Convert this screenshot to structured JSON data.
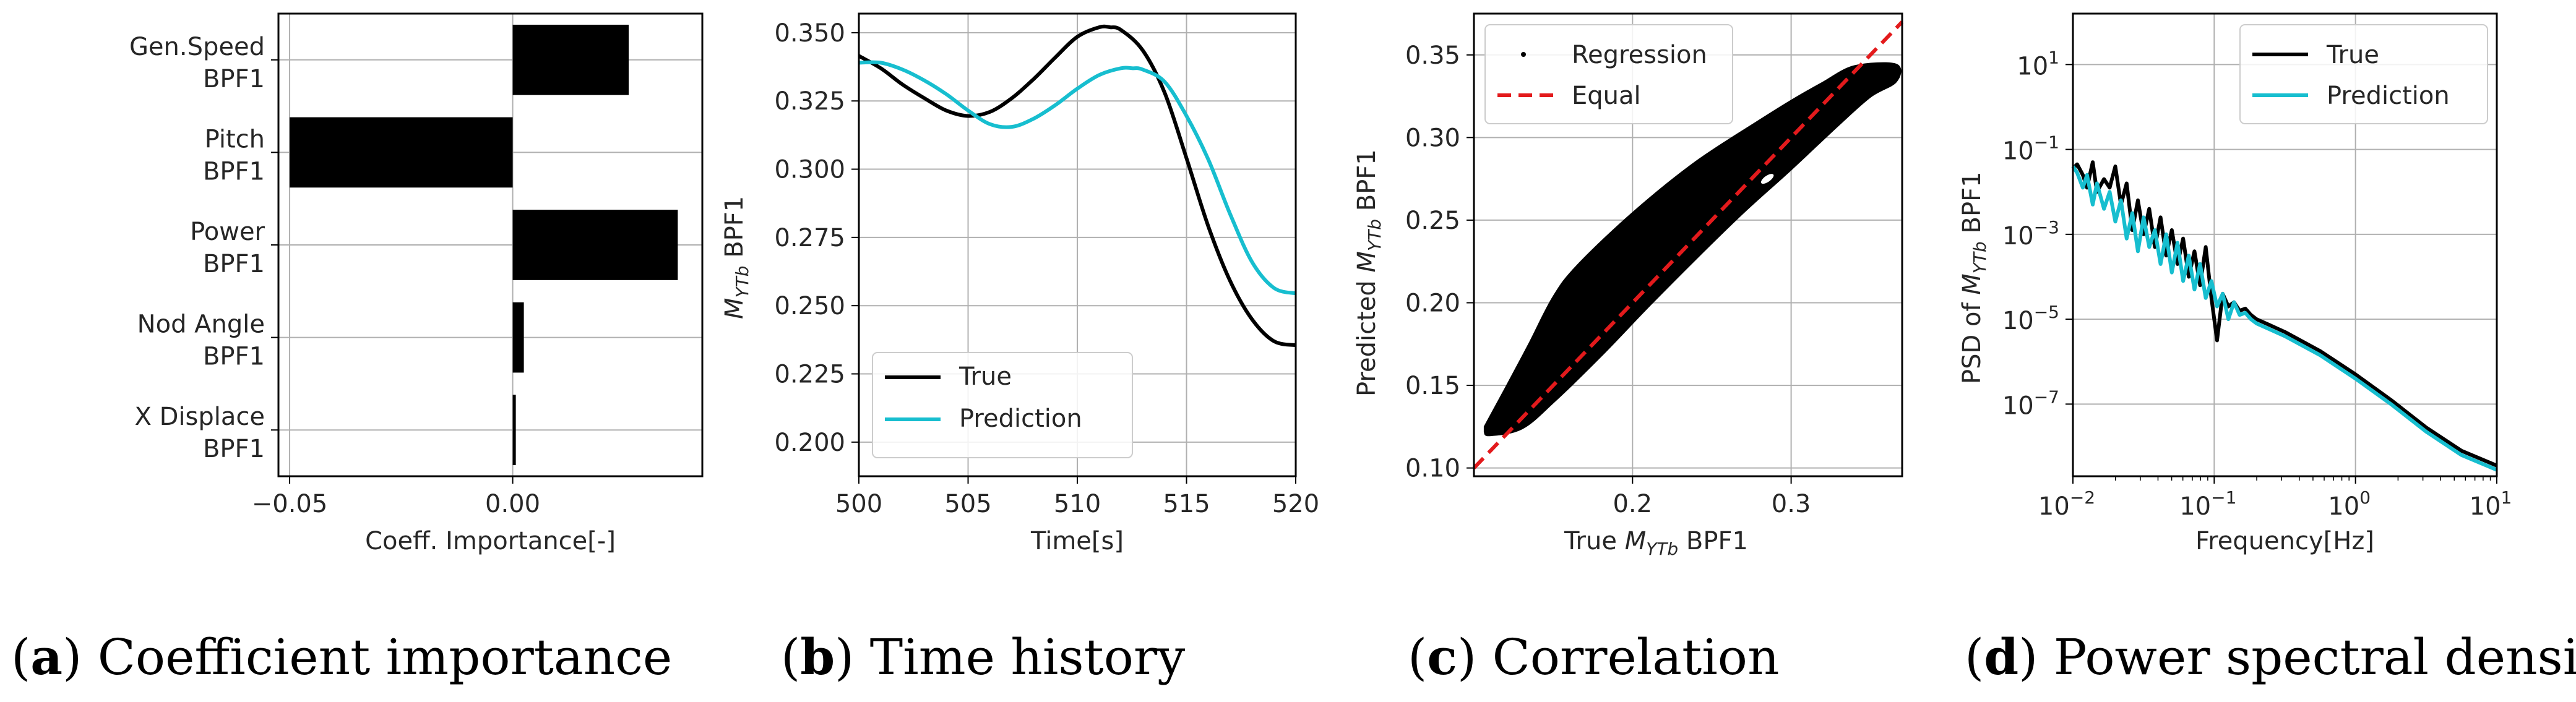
{
  "colors": {
    "true": "#000000",
    "prediction": "#17becf",
    "equal": "#e31a1c",
    "grid": "#b0b0b0",
    "axis": "#000000"
  },
  "chart_data": [
    {
      "id": "a",
      "type": "bar",
      "orientation": "horizontal",
      "title": "",
      "categories": [
        [
          "Gen.Speed",
          "BPF1"
        ],
        [
          "Pitch",
          "BPF1"
        ],
        [
          "Power",
          "BPF1"
        ],
        [
          "Nod Angle",
          "BPF1"
        ],
        [
          "X Displace",
          "BPF1"
        ]
      ],
      "values": [
        0.026,
        -0.05,
        0.037,
        0.0025,
        0.0007
      ],
      "xlabel": "Coeff. Importance[-]",
      "xlim": [
        -0.0525,
        0.0425
      ],
      "xticks": [
        -0.05,
        0.0
      ],
      "xtick_labels": [
        "−0.05",
        "0.00"
      ],
      "grid": true,
      "caption_letter": "a",
      "caption_text": ") Coefficient importance"
    },
    {
      "id": "b",
      "type": "line",
      "xlabel": "Time[s]",
      "ylabel_parts": [
        "M",
        "YTb",
        " BPF1"
      ],
      "xlim": [
        500,
        520
      ],
      "ylim": [
        0.1875,
        0.357
      ],
      "xticks": [
        500,
        505,
        510,
        515,
        520
      ],
      "xtick_labels": [
        "500",
        "505",
        "510",
        "515",
        "520"
      ],
      "yticks": [
        0.2,
        0.225,
        0.25,
        0.275,
        0.3,
        0.325,
        0.35
      ],
      "ytick_labels": [
        "0.200",
        "0.225",
        "0.250",
        "0.275",
        "0.300",
        "0.325",
        "0.350"
      ],
      "grid": true,
      "series": [
        {
          "name": "True",
          "x": [
            500,
            501,
            502,
            503,
            504,
            505,
            506,
            507,
            508,
            509,
            510,
            511,
            511.5,
            512,
            513,
            514,
            515,
            516,
            517,
            518,
            519,
            520
          ],
          "values": [
            0.3415,
            0.337,
            0.331,
            0.326,
            0.3215,
            0.3195,
            0.321,
            0.326,
            0.333,
            0.341,
            0.3485,
            0.352,
            0.352,
            0.351,
            0.3435,
            0.328,
            0.304,
            0.279,
            0.259,
            0.245,
            0.237,
            0.2355
          ]
        },
        {
          "name": "Prediction",
          "x": [
            500,
            501,
            502,
            503,
            504,
            505,
            506,
            507,
            508,
            509,
            510,
            511,
            512,
            512.5,
            513,
            514,
            515,
            516,
            517,
            518,
            519,
            520
          ],
          "values": [
            0.339,
            0.339,
            0.3365,
            0.3325,
            0.3275,
            0.3215,
            0.3165,
            0.3155,
            0.3185,
            0.3235,
            0.3295,
            0.3345,
            0.337,
            0.337,
            0.3365,
            0.332,
            0.3195,
            0.3035,
            0.2835,
            0.266,
            0.2565,
            0.2545
          ]
        }
      ],
      "legend": {
        "placement": "lower-left",
        "entries": [
          "True",
          "Prediction"
        ]
      },
      "caption_letter": "b",
      "caption_text": ") Time history"
    },
    {
      "id": "c",
      "type": "scatter",
      "xlabel_parts": [
        "True ",
        "M",
        "YTb",
        " BPF1"
      ],
      "ylabel_parts": [
        "Predicted ",
        "M",
        "YTb",
        " BPF1"
      ],
      "xlim": [
        0.1,
        0.37
      ],
      "ylim": [
        0.095,
        0.375
      ],
      "xticks": [
        0.2,
        0.3
      ],
      "xtick_labels": [
        "0.2",
        "0.3"
      ],
      "yticks": [
        0.1,
        0.15,
        0.2,
        0.25,
        0.3,
        0.35
      ],
      "ytick_labels": [
        "0.10",
        "0.15",
        "0.20",
        "0.25",
        "0.30",
        "0.35"
      ],
      "grid": true,
      "regression_band": {
        "upper": [
          [
            0.107,
            0.125
          ],
          [
            0.12,
            0.148
          ],
          [
            0.135,
            0.175
          ],
          [
            0.15,
            0.203
          ],
          [
            0.165,
            0.222
          ],
          [
            0.2,
            0.254
          ],
          [
            0.24,
            0.285
          ],
          [
            0.28,
            0.31
          ],
          [
            0.3,
            0.322
          ],
          [
            0.32,
            0.333
          ],
          [
            0.34,
            0.343
          ],
          [
            0.366,
            0.344
          ]
        ],
        "lower": [
          [
            0.366,
            0.334
          ],
          [
            0.35,
            0.325
          ],
          [
            0.33,
            0.308
          ],
          [
            0.3,
            0.281
          ],
          [
            0.27,
            0.255
          ],
          [
            0.24,
            0.227
          ],
          [
            0.21,
            0.198
          ],
          [
            0.18,
            0.168
          ],
          [
            0.15,
            0.14
          ],
          [
            0.13,
            0.124
          ],
          [
            0.11,
            0.12
          ],
          [
            0.107,
            0.122
          ]
        ]
      },
      "equal_line": {
        "x": [
          0.1,
          0.37
        ],
        "y": [
          0.1,
          0.37
        ]
      },
      "legend": {
        "placement": "top-left",
        "entries": [
          "Regression",
          "Equal"
        ]
      },
      "caption_letter": "c",
      "caption_text": ") Correlation"
    },
    {
      "id": "d",
      "type": "line",
      "xscale": "log",
      "yscale": "log",
      "xlabel": "Frequency[Hz]",
      "ylabel_parts": [
        "PSD of ",
        "M",
        "YTb",
        " BPF1"
      ],
      "xlim_log10": [
        -2,
        1
      ],
      "ylim_log10": [
        -8.7,
        2.2
      ],
      "xticks_log10": [
        -2,
        -1,
        0,
        1
      ],
      "xtick_labels": [
        [
          "10",
          "−2"
        ],
        [
          "10",
          "−1"
        ],
        [
          "10",
          "0"
        ],
        [
          "10",
          "1"
        ]
      ],
      "yticks_log10": [
        1,
        -1,
        -3,
        -5,
        -7
      ],
      "ytick_labels": [
        [
          "10",
          "1"
        ],
        [
          "10",
          "−1"
        ],
        [
          "10",
          "−3"
        ],
        [
          "10",
          "−5"
        ],
        [
          "10",
          "−7"
        ]
      ],
      "grid": true,
      "series": [
        {
          "name": "True",
          "x_log10": [
            -2,
            -1.97,
            -1.93,
            -1.9,
            -1.86,
            -1.83,
            -1.78,
            -1.74,
            -1.7,
            -1.66,
            -1.62,
            -1.58,
            -1.54,
            -1.5,
            -1.46,
            -1.42,
            -1.38,
            -1.34,
            -1.3,
            -1.26,
            -1.22,
            -1.18,
            -1.14,
            -1.1,
            -1.06,
            -1.02,
            -0.98,
            -0.94,
            -0.9,
            -0.86,
            -0.82,
            -0.78,
            -0.74,
            -0.7,
            -0.6,
            -0.5,
            -0.25,
            0,
            0.25,
            0.5,
            0.75,
            1
          ],
          "y_log10": [
            -1.45,
            -1.35,
            -1.6,
            -1.9,
            -1.3,
            -2.0,
            -1.7,
            -1.9,
            -1.4,
            -2.3,
            -1.8,
            -2.9,
            -2.2,
            -3.0,
            -2.4,
            -3.3,
            -2.6,
            -3.5,
            -2.9,
            -3.7,
            -3.1,
            -4.0,
            -3.4,
            -4.2,
            -3.3,
            -4.5,
            -5.5,
            -4.4,
            -4.7,
            -4.6,
            -4.8,
            -4.75,
            -4.9,
            -5.0,
            -5.15,
            -5.3,
            -5.75,
            -6.3,
            -6.9,
            -7.55,
            -8.1,
            -8.45
          ]
        },
        {
          "name": "Prediction",
          "x_log10": [
            -2,
            -1.97,
            -1.93,
            -1.9,
            -1.86,
            -1.83,
            -1.78,
            -1.74,
            -1.7,
            -1.66,
            -1.62,
            -1.58,
            -1.54,
            -1.5,
            -1.46,
            -1.42,
            -1.38,
            -1.34,
            -1.3,
            -1.26,
            -1.22,
            -1.18,
            -1.14,
            -1.1,
            -1.06,
            -1.02,
            -0.98,
            -0.94,
            -0.9,
            -0.86,
            -0.82,
            -0.78,
            -0.74,
            -0.7,
            -0.6,
            -0.5,
            -0.25,
            0,
            0.25,
            0.5,
            0.75,
            1
          ],
          "y_log10": [
            -1.4,
            -1.55,
            -1.9,
            -1.6,
            -2.3,
            -1.8,
            -2.4,
            -2.0,
            -2.7,
            -2.2,
            -3.1,
            -2.5,
            -3.4,
            -2.6,
            -3.3,
            -2.9,
            -3.7,
            -3.0,
            -3.9,
            -3.2,
            -4.1,
            -3.5,
            -4.3,
            -3.7,
            -4.5,
            -4.1,
            -4.7,
            -4.4,
            -5.0,
            -4.6,
            -4.9,
            -4.85,
            -5.0,
            -5.1,
            -5.25,
            -5.4,
            -5.85,
            -6.4,
            -7.0,
            -7.65,
            -8.2,
            -8.55
          ]
        }
      ],
      "legend": {
        "placement": "top-right",
        "entries": [
          "True",
          "Prediction"
        ]
      },
      "caption_letter": "d",
      "caption_text": ") Power spectral density"
    }
  ]
}
